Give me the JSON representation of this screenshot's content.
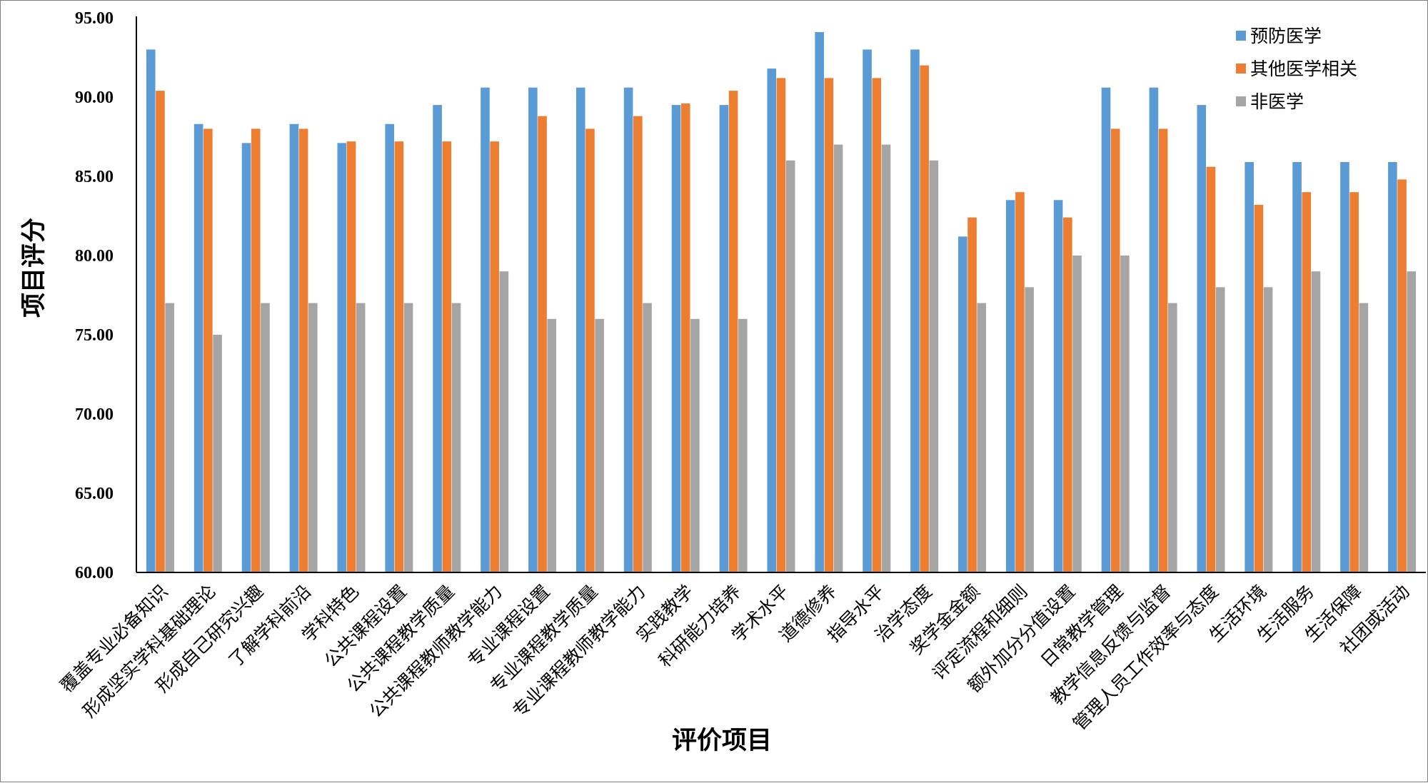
{
  "chart_data": {
    "type": "bar",
    "xlabel": "评价项目",
    "ylabel": "项目评分",
    "ylim": [
      60,
      95
    ],
    "yticks": [
      "60.00",
      "65.00",
      "70.00",
      "75.00",
      "80.00",
      "85.00",
      "90.00",
      "95.00"
    ],
    "ytick_values": [
      60,
      65,
      70,
      75,
      80,
      85,
      90,
      95
    ],
    "legend_position": "top-right",
    "grid": false,
    "categories": [
      "覆盖专业必备知识",
      "形成坚实学科基础理论",
      "形成自己研究兴趣",
      "了解学科前沿",
      "学科特色",
      "公共课程设置",
      "公共课程教学质量",
      "公共课程教师教学能力",
      "专业课程设置",
      "专业课程教学质量",
      "专业课程教师教学能力",
      "实践教学",
      "科研能力培养",
      "学术水平",
      "道德修养",
      "指导水平",
      "治学态度",
      "奖学金金额",
      "评定流程和细则",
      "额外加分分值设置",
      "日常教学管理",
      "教学信息反馈与监督",
      "管理人员工作效率与态度",
      "生活环境",
      "生活服务",
      "生活保障",
      "社团或活动"
    ],
    "series": [
      {
        "name": "预防医学",
        "color": "#5b9bd5",
        "values": [
          93.0,
          88.3,
          87.1,
          88.3,
          87.1,
          88.3,
          89.5,
          90.6,
          90.6,
          90.6,
          90.6,
          89.5,
          89.5,
          91.8,
          94.1,
          93.0,
          93.0,
          81.2,
          83.5,
          83.5,
          90.6,
          90.6,
          89.5,
          85.9,
          85.9,
          85.9,
          85.9
        ]
      },
      {
        "name": "其他医学相关",
        "color": "#ed7d31",
        "values": [
          90.4,
          88.0,
          88.0,
          88.0,
          87.2,
          87.2,
          87.2,
          87.2,
          88.8,
          88.0,
          88.8,
          89.6,
          90.4,
          91.2,
          91.2,
          91.2,
          92.0,
          82.4,
          84.0,
          82.4,
          88.0,
          88.0,
          85.6,
          83.2,
          84.0,
          84.0,
          84.8
        ]
      },
      {
        "name": "非医学",
        "color": "#a5a5a5",
        "values": [
          77,
          75,
          77,
          77,
          77,
          77,
          77,
          79,
          76,
          76,
          77,
          76,
          76,
          86,
          87,
          87,
          86,
          77,
          78,
          80,
          80,
          77,
          78,
          78,
          79,
          77,
          79
        ]
      }
    ]
  }
}
